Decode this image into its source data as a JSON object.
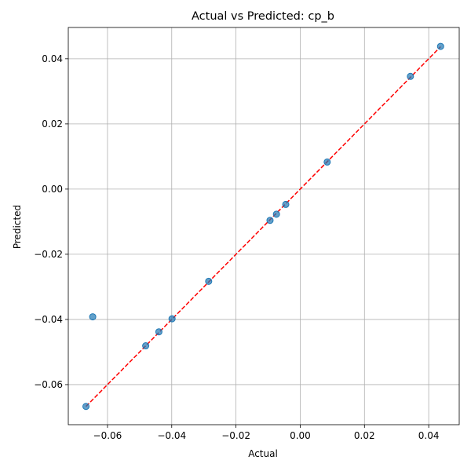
{
  "chart_data": {
    "type": "scatter",
    "title": "Actual vs Predicted: cp_b",
    "xlabel": "Actual",
    "ylabel": "Predicted",
    "xlim": [
      -0.0722,
      0.0495
    ],
    "ylim": [
      -0.0723,
      0.0496
    ],
    "x_ticks": [
      -0.06,
      -0.04,
      -0.02,
      0.0,
      0.02,
      0.04
    ],
    "x_tick_labels": [
      "−0.06",
      "−0.04",
      "−0.02",
      "0.00",
      "0.02",
      "0.04"
    ],
    "y_ticks": [
      -0.06,
      -0.04,
      -0.02,
      0.0,
      0.02,
      0.04
    ],
    "y_tick_labels": [
      "−0.06",
      "−0.04",
      "−0.02",
      "0.00",
      "0.02",
      "0.04"
    ],
    "grid": true,
    "series": [
      {
        "points": [
          {
            "x": -0.0667,
            "y": -0.0667
          },
          {
            "x": -0.0646,
            "y": -0.0392
          },
          {
            "x": -0.0481,
            "y": -0.0481
          },
          {
            "x": -0.044,
            "y": -0.0438
          },
          {
            "x": -0.0399,
            "y": -0.0398
          },
          {
            "x": -0.0285,
            "y": -0.0283
          },
          {
            "x": -0.0094,
            "y": -0.0096
          },
          {
            "x": -0.0074,
            "y": -0.0077
          },
          {
            "x": -0.0045,
            "y": -0.0047
          },
          {
            "x": 0.0084,
            "y": 0.0083
          },
          {
            "x": 0.0343,
            "y": 0.0346
          },
          {
            "x": 0.0437,
            "y": 0.0438
          }
        ],
        "color": "#1f77b4"
      }
    ],
    "reference_line": {
      "from": [
        -0.0667,
        -0.0667
      ],
      "to": [
        0.0437,
        0.0437
      ],
      "color": "#ff0000",
      "style": "dashed"
    }
  }
}
